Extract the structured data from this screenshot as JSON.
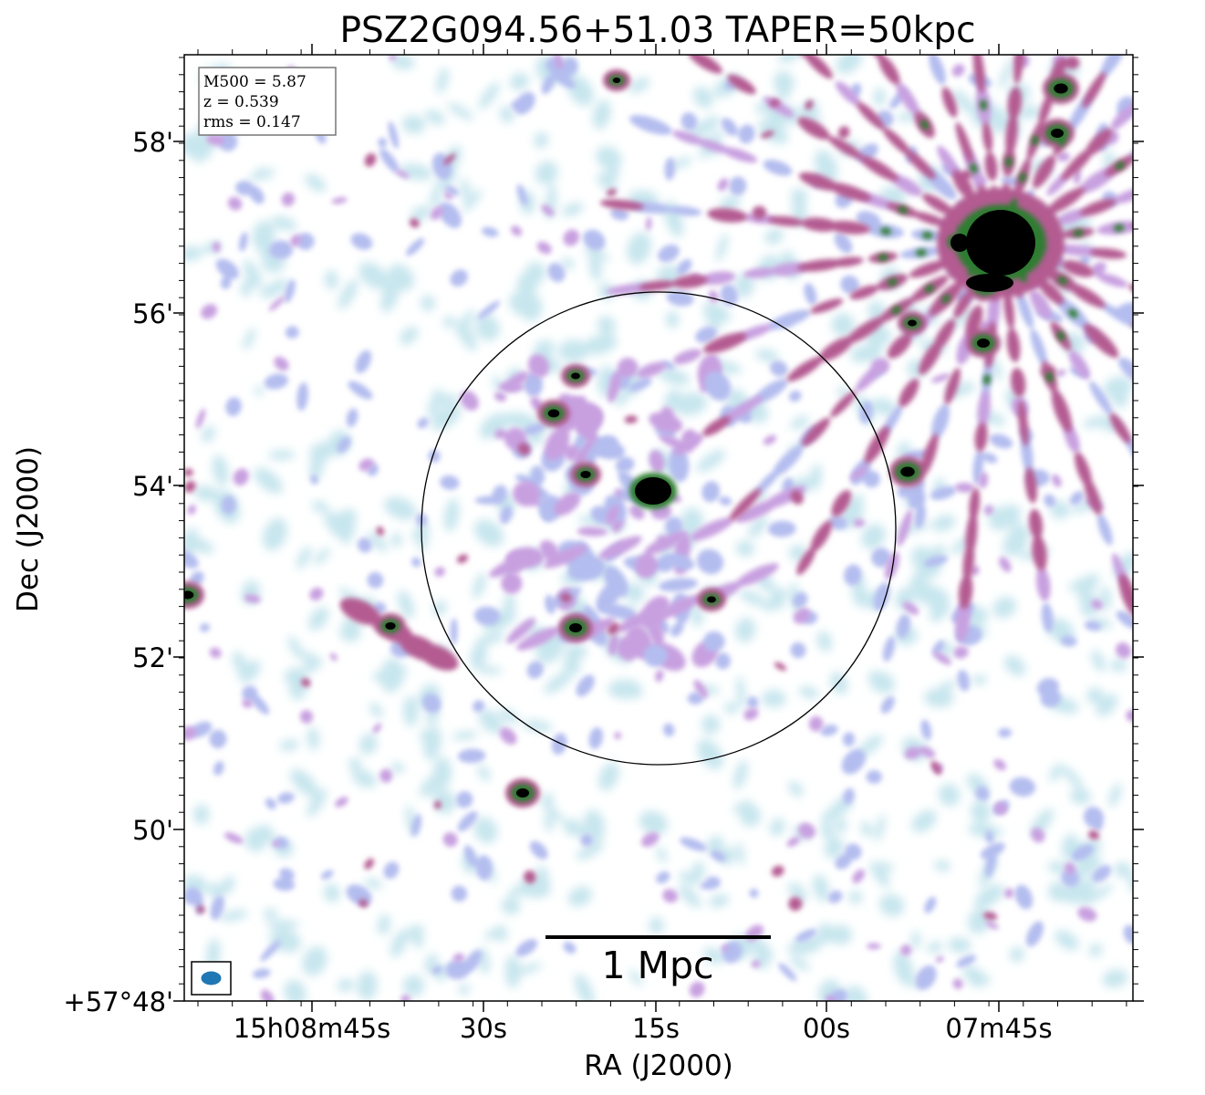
{
  "title": "PSZ2G094.56+51.03 TAPER=50kpc",
  "info_box": {
    "lines": [
      "M500 = 5.87",
      "z = 0.539",
      "rms = 0.147"
    ]
  },
  "axes": {
    "xlabel": "RA (J2000)",
    "ylabel": "Dec (J2000)",
    "x_ticks": [
      "15h08m45s",
      "30s",
      "15s",
      "00s",
      "07m45s"
    ],
    "y_ticks": [
      "58'",
      "56'",
      "54'",
      "52'",
      "50'",
      "+57°48'"
    ]
  },
  "scale_bar": {
    "label": "1 Mpc"
  },
  "colors": {
    "faint": "#c8e6ee",
    "low": "#b4bdef",
    "mid": "#c8a0e0",
    "high": "#b45c92",
    "peak": "#2e7d32",
    "core": "#000000",
    "beam": "#1f77b4"
  }
}
